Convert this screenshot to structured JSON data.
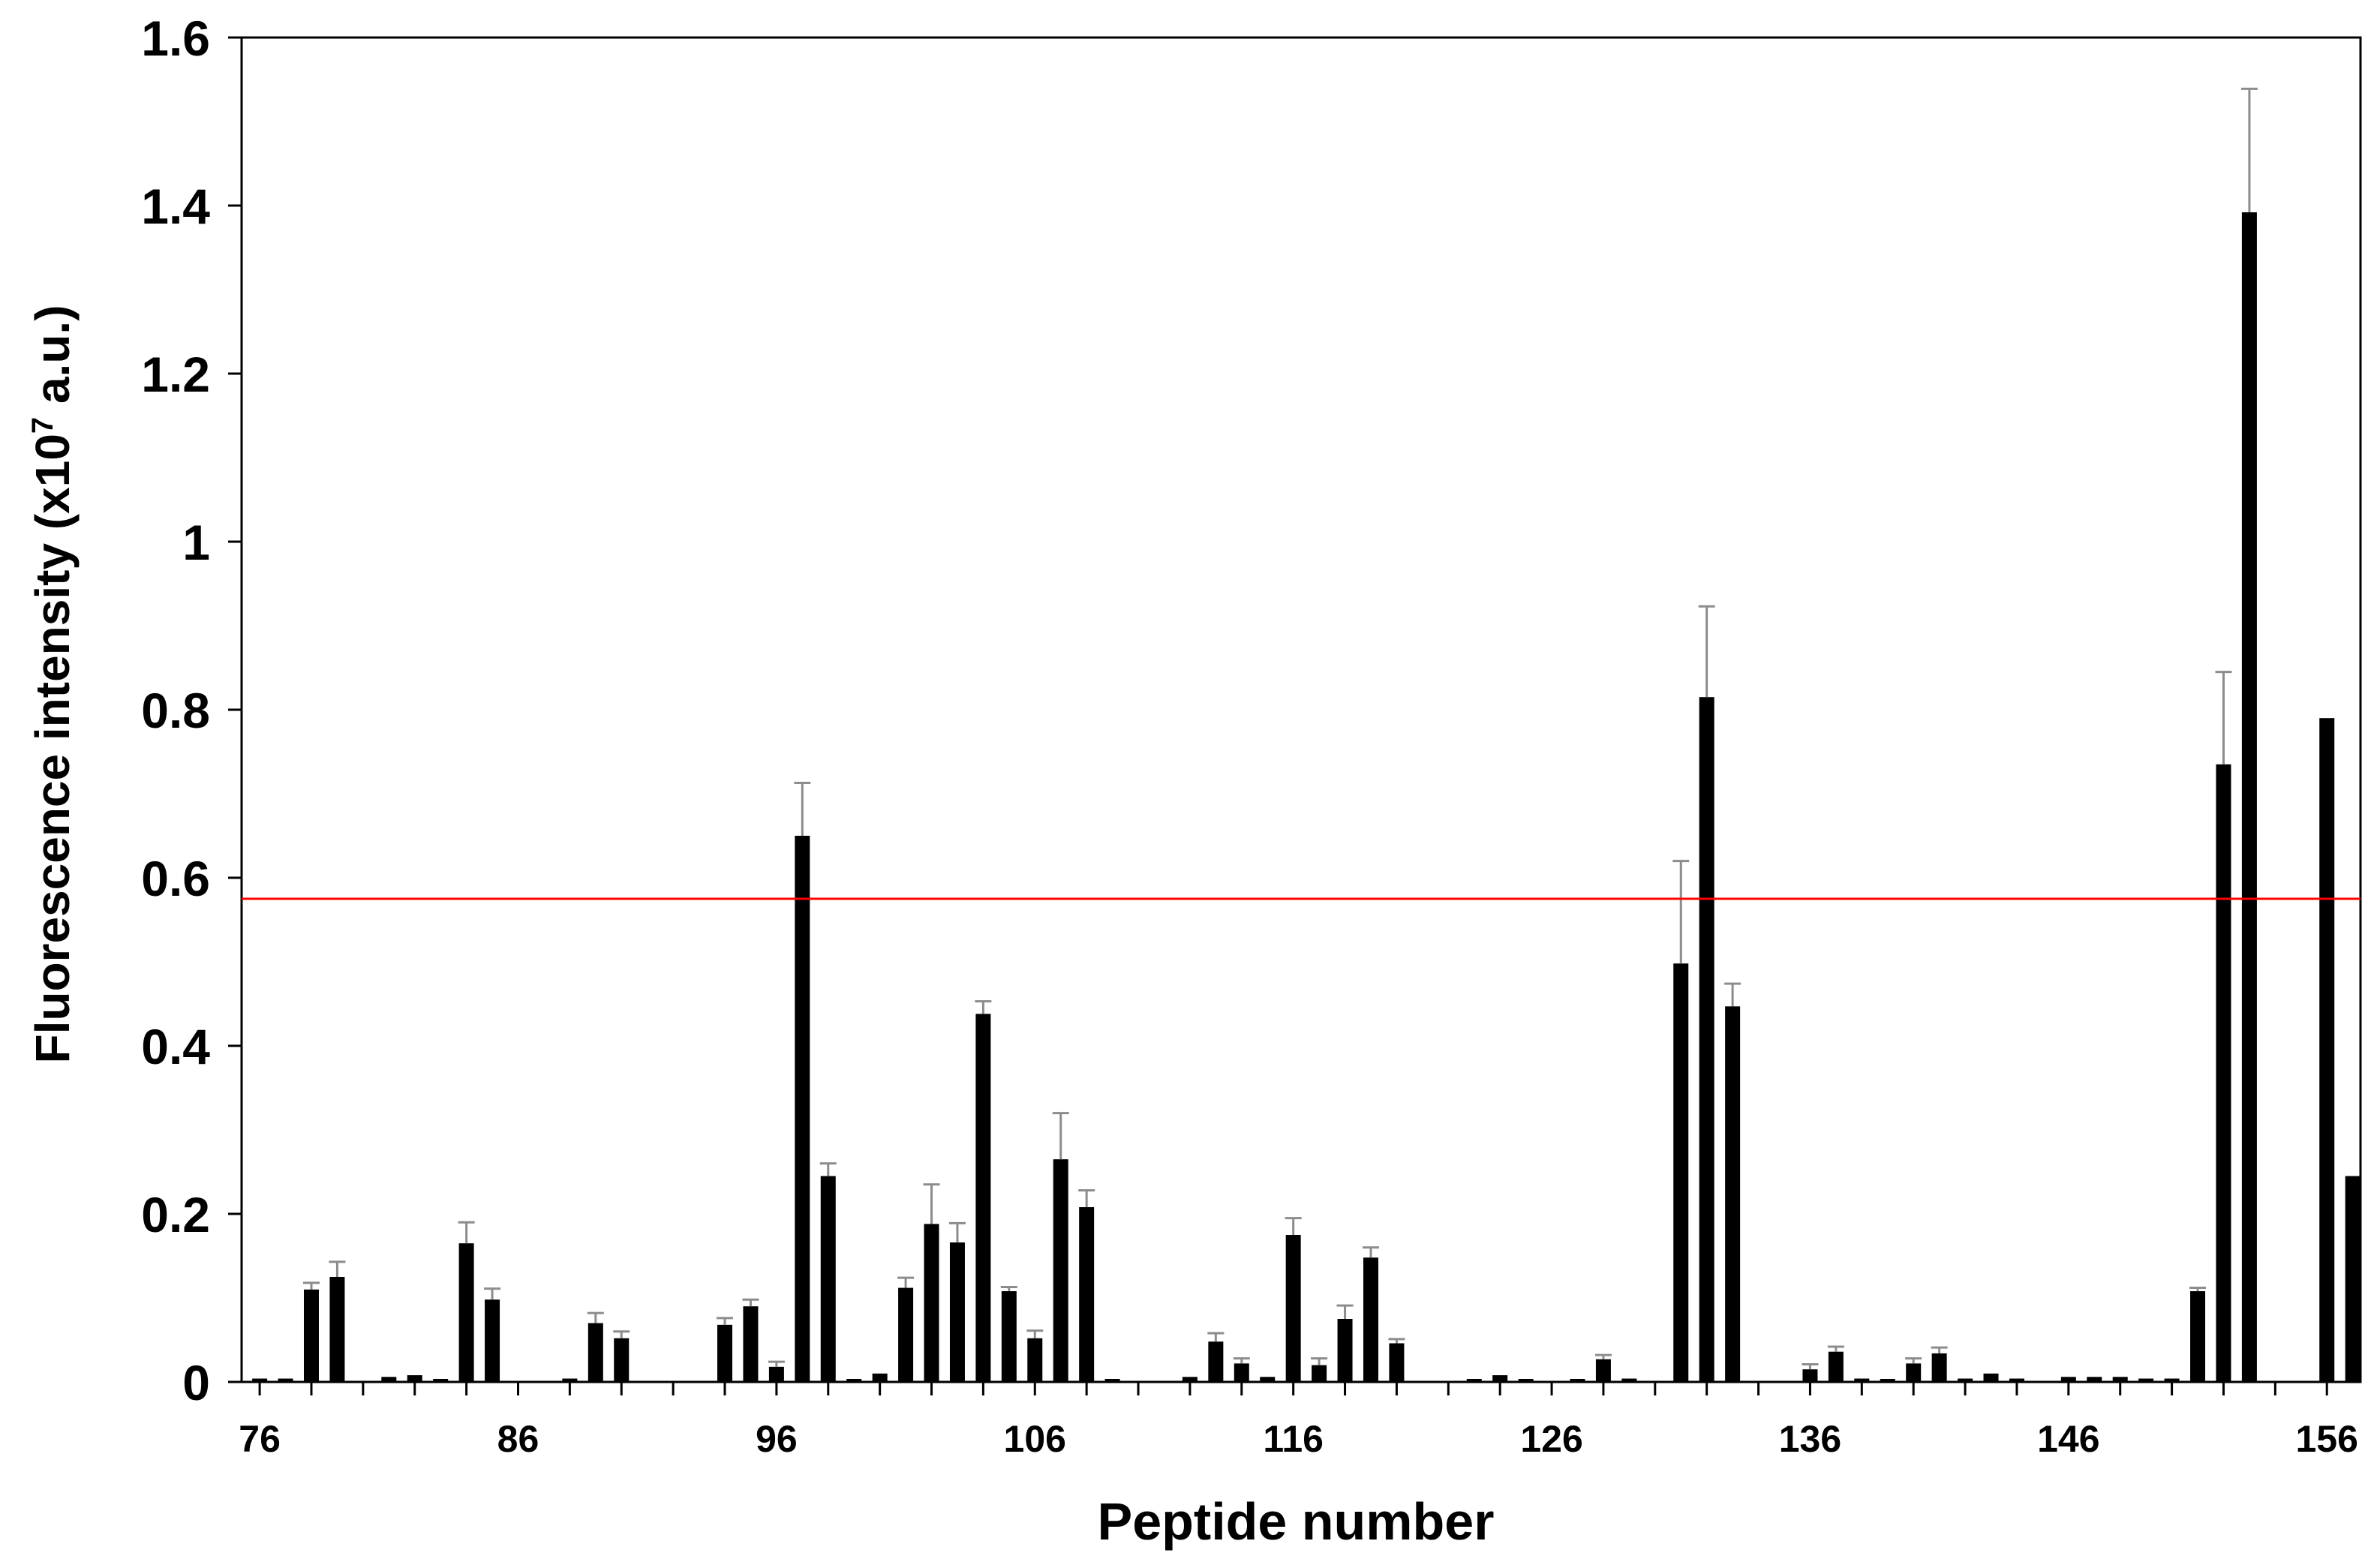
{
  "chart_data": {
    "type": "bar",
    "xlabel": "Peptide number",
    "ylabel_main": "Fluorescence intensity (x10",
    "ylabel_exp": "7",
    "ylabel_unit": " a.u.)",
    "ylim": [
      0,
      1.6
    ],
    "xlim": [
      75.3,
      157.3
    ],
    "y_ticks": [
      "0",
      "0.2",
      "0.4",
      "0.6",
      "0.8",
      "1",
      "1.2",
      "1.4",
      "1.6"
    ],
    "x_ticks": [
      76,
      86,
      96,
      106,
      116,
      126,
      136,
      146,
      156
    ],
    "threshold": 0.575,
    "colors": {
      "bar": "#000000",
      "threshold": "#ff0000",
      "error_bar": "#8c8c8c",
      "axis": "#000000"
    },
    "bars": [
      {
        "x": 76,
        "value": 0.004
      },
      {
        "x": 77,
        "value": 0.004
      },
      {
        "x": 78,
        "value": 0.11,
        "error": 0.008
      },
      {
        "x": 79,
        "value": 0.125,
        "error": 0.018
      },
      {
        "x": 81,
        "value": 0.006
      },
      {
        "x": 82,
        "value": 0.008
      },
      {
        "x": 83,
        "value": 0.002
      },
      {
        "x": 84,
        "value": 0.165,
        "error": 0.025
      },
      {
        "x": 85,
        "value": 0.098,
        "error": 0.013
      },
      {
        "x": 88,
        "value": 0.004
      },
      {
        "x": 89,
        "value": 0.07,
        "error": 0.012
      },
      {
        "x": 90,
        "value": 0.052,
        "error": 0.008
      },
      {
        "x": 94,
        "value": 0.068,
        "error": 0.008
      },
      {
        "x": 95,
        "value": 0.09,
        "error": 0.008
      },
      {
        "x": 96,
        "value": 0.018,
        "error": 0.006
      },
      {
        "x": 97,
        "value": 0.65,
        "error": 0.063
      },
      {
        "x": 98,
        "value": 0.245,
        "error": 0.015
      },
      {
        "x": 99,
        "value": 0.002
      },
      {
        "x": 100,
        "value": 0.01
      },
      {
        "x": 101,
        "value": 0.112,
        "error": 0.012
      },
      {
        "x": 102,
        "value": 0.188,
        "error": 0.047
      },
      {
        "x": 103,
        "value": 0.166,
        "error": 0.023
      },
      {
        "x": 104,
        "value": 0.438,
        "error": 0.015
      },
      {
        "x": 105,
        "value": 0.108,
        "error": 0.005
      },
      {
        "x": 106,
        "value": 0.052,
        "error": 0.009
      },
      {
        "x": 107,
        "value": 0.265,
        "error": 0.055
      },
      {
        "x": 108,
        "value": 0.208,
        "error": 0.02
      },
      {
        "x": 109,
        "value": 0.002
      },
      {
        "x": 112,
        "value": 0.006
      },
      {
        "x": 113,
        "value": 0.048,
        "error": 0.01
      },
      {
        "x": 114,
        "value": 0.022,
        "error": 0.006
      },
      {
        "x": 115,
        "value": 0.006
      },
      {
        "x": 116,
        "value": 0.175,
        "error": 0.02
      },
      {
        "x": 117,
        "value": 0.02,
        "error": 0.008
      },
      {
        "x": 118,
        "value": 0.075,
        "error": 0.016
      },
      {
        "x": 119,
        "value": 0.148,
        "error": 0.012
      },
      {
        "x": 120,
        "value": 0.046,
        "error": 0.005
      },
      {
        "x": 123,
        "value": 0.003
      },
      {
        "x": 124,
        "value": 0.008
      },
      {
        "x": 125,
        "value": 0.002
      },
      {
        "x": 127,
        "value": 0.003
      },
      {
        "x": 128,
        "value": 0.027,
        "error": 0.005
      },
      {
        "x": 129,
        "value": 0.004
      },
      {
        "x": 131,
        "value": 0.498,
        "error": 0.122
      },
      {
        "x": 132,
        "value": 0.815,
        "error": 0.108
      },
      {
        "x": 133,
        "value": 0.447,
        "error": 0.027
      },
      {
        "x": 136,
        "value": 0.015,
        "error": 0.006
      },
      {
        "x": 137,
        "value": 0.036,
        "error": 0.006
      },
      {
        "x": 138,
        "value": 0.004
      },
      {
        "x": 139,
        "value": 0.002
      },
      {
        "x": 140,
        "value": 0.022,
        "error": 0.006
      },
      {
        "x": 141,
        "value": 0.034,
        "error": 0.007
      },
      {
        "x": 142,
        "value": 0.004
      },
      {
        "x": 143,
        "value": 0.01
      },
      {
        "x": 144,
        "value": 0.004
      },
      {
        "x": 146,
        "value": 0.006
      },
      {
        "x": 147,
        "value": 0.006
      },
      {
        "x": 148,
        "value": 0.006
      },
      {
        "x": 149,
        "value": 0.004
      },
      {
        "x": 150,
        "value": 0.004
      },
      {
        "x": 151,
        "value": 0.108,
        "error": 0.004
      },
      {
        "x": 152,
        "value": 0.735,
        "error": 0.11
      },
      {
        "x": 153,
        "value": 1.392,
        "error": 0.147
      },
      {
        "x": 156,
        "value": 0.79
      },
      {
        "x": 157,
        "value": 0.245
      }
    ]
  }
}
